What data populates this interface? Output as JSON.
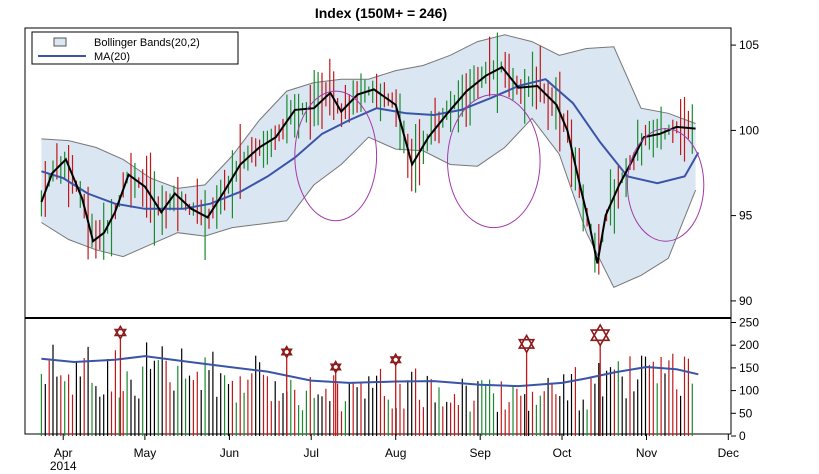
{
  "chart_data": {
    "type": "line",
    "title": "Index (150M+ = 246)",
    "legend": {
      "placement": "top-left",
      "entries": [
        "Bollinger Bands(20,2)",
        "MA(20)"
      ]
    },
    "colors": {
      "band_fill": "#dbe6f3",
      "band_edge": "#777777",
      "ma": "#3a55a8",
      "price": "#000000",
      "bar_up": "#1a8a2e",
      "bar_down": "#c01818",
      "ellipse": "#a23aa8",
      "star": "#8b1a1a",
      "volume_ma": "#3a55a8"
    },
    "x_axis": {
      "labels": [
        "Apr",
        "May",
        "Jun",
        "Jul",
        "Aug",
        "Sep",
        "Oct",
        "Nov",
        "Dec"
      ],
      "sub_label": "2014"
    },
    "price_axis": {
      "range": [
        89,
        106
      ],
      "ticks": [
        "90",
        "95",
        "100",
        "105"
      ]
    },
    "volume_axis": {
      "range": [
        0,
        260
      ],
      "ticks": [
        "0",
        "50",
        "100",
        "150",
        "200",
        "250"
      ]
    },
    "series": [
      {
        "name": "MA(20)",
        "points": [
          [
            "2014-03-24",
            97.6
          ],
          [
            "2014-04-01",
            97.2
          ],
          [
            "2014-04-10",
            96.3
          ],
          [
            "2014-04-20",
            95.7
          ],
          [
            "2014-05-01",
            95.4
          ],
          [
            "2014-05-15",
            95.4
          ],
          [
            "2014-05-25",
            95.7
          ],
          [
            "2014-06-05",
            96.4
          ],
          [
            "2014-06-15",
            97.3
          ],
          [
            "2014-06-25",
            98.4
          ],
          [
            "2014-07-05",
            99.8
          ],
          [
            "2014-07-15",
            100.6
          ],
          [
            "2014-07-25",
            101.3
          ],
          [
            "2014-08-05",
            101.0
          ],
          [
            "2014-08-15",
            100.9
          ],
          [
            "2014-08-25",
            101.2
          ],
          [
            "2014-09-05",
            101.9
          ],
          [
            "2014-09-15",
            102.6
          ],
          [
            "2014-09-25",
            103.0
          ],
          [
            "2014-10-05",
            101.6
          ],
          [
            "2014-10-15",
            99.3
          ],
          [
            "2014-10-25",
            97.3
          ],
          [
            "2014-11-05",
            96.9
          ],
          [
            "2014-11-15",
            97.3
          ],
          [
            "2014-11-20",
            98.7
          ]
        ]
      },
      {
        "name": "Price",
        "points": [
          [
            "2014-03-24",
            95.8
          ],
          [
            "2014-03-28",
            97.5
          ],
          [
            "2014-04-02",
            98.3
          ],
          [
            "2014-04-08",
            96.0
          ],
          [
            "2014-04-12",
            93.5
          ],
          [
            "2014-04-16",
            94.0
          ],
          [
            "2014-04-20",
            95.2
          ],
          [
            "2014-04-25",
            97.4
          ],
          [
            "2014-05-01",
            96.7
          ],
          [
            "2014-05-07",
            95.2
          ],
          [
            "2014-05-12",
            96.3
          ],
          [
            "2014-05-18",
            95.4
          ],
          [
            "2014-05-24",
            94.9
          ],
          [
            "2014-05-30",
            96.4
          ],
          [
            "2014-06-05",
            98.0
          ],
          [
            "2014-06-12",
            99.0
          ],
          [
            "2014-06-18",
            99.6
          ],
          [
            "2014-06-25",
            101.2
          ],
          [
            "2014-07-02",
            101.3
          ],
          [
            "2014-07-08",
            102.2
          ],
          [
            "2014-07-12",
            101.1
          ],
          [
            "2014-07-18",
            102.1
          ],
          [
            "2014-07-24",
            102.4
          ],
          [
            "2014-08-01",
            101.5
          ],
          [
            "2014-08-07",
            98.0
          ],
          [
            "2014-08-13",
            99.6
          ],
          [
            "2014-08-20",
            101.0
          ],
          [
            "2014-08-27",
            102.3
          ],
          [
            "2014-09-03",
            103.2
          ],
          [
            "2014-09-09",
            103.7
          ],
          [
            "2014-09-15",
            102.5
          ],
          [
            "2014-09-22",
            102.6
          ],
          [
            "2014-09-29",
            101.5
          ],
          [
            "2014-10-03",
            100.0
          ],
          [
            "2014-10-08",
            96.5
          ],
          [
            "2014-10-11",
            94.5
          ],
          [
            "2014-10-14",
            92.2
          ],
          [
            "2014-10-17",
            95.0
          ],
          [
            "2014-10-22",
            96.8
          ],
          [
            "2014-10-27",
            98.3
          ],
          [
            "2014-10-31",
            99.6
          ],
          [
            "2014-11-06",
            99.8
          ],
          [
            "2014-11-12",
            100.2
          ],
          [
            "2014-11-19",
            100.1
          ]
        ]
      }
    ],
    "bollinger_bands": {
      "upper": [
        [
          "2014-03-24",
          99.5
        ],
        [
          "2014-04-03",
          99.4
        ],
        [
          "2014-04-13",
          99.0
        ],
        [
          "2014-04-23",
          98.3
        ],
        [
          "2014-05-03",
          97.2
        ],
        [
          "2014-05-13",
          96.6
        ],
        [
          "2014-05-23",
          96.8
        ],
        [
          "2014-06-02",
          98.5
        ],
        [
          "2014-06-12",
          100.6
        ],
        [
          "2014-06-22",
          102.3
        ],
        [
          "2014-07-02",
          102.8
        ],
        [
          "2014-07-12",
          103.0
        ],
        [
          "2014-07-22",
          103.0
        ],
        [
          "2014-08-01",
          103.5
        ],
        [
          "2014-08-11",
          103.8
        ],
        [
          "2014-08-21",
          104.4
        ],
        [
          "2014-08-31",
          105.2
        ],
        [
          "2014-09-10",
          105.6
        ],
        [
          "2014-09-20",
          105.2
        ],
        [
          "2014-09-30",
          104.4
        ],
        [
          "2014-10-10",
          104.8
        ],
        [
          "2014-10-20",
          104.9
        ],
        [
          "2014-10-30",
          101.3
        ],
        [
          "2014-11-09",
          101.0
        ],
        [
          "2014-11-19",
          100.4
        ]
      ],
      "lower": [
        [
          "2014-03-24",
          94.6
        ],
        [
          "2014-04-03",
          93.6
        ],
        [
          "2014-04-13",
          93.0
        ],
        [
          "2014-04-23",
          92.6
        ],
        [
          "2014-05-03",
          93.3
        ],
        [
          "2014-05-13",
          94.0
        ],
        [
          "2014-05-23",
          93.8
        ],
        [
          "2014-06-02",
          94.3
        ],
        [
          "2014-06-12",
          94.5
        ],
        [
          "2014-06-22",
          94.7
        ],
        [
          "2014-07-02",
          96.8
        ],
        [
          "2014-07-12",
          98.0
        ],
        [
          "2014-07-22",
          99.6
        ],
        [
          "2014-08-01",
          98.9
        ],
        [
          "2014-08-11",
          98.8
        ],
        [
          "2014-08-21",
          98.0
        ],
        [
          "2014-08-31",
          97.9
        ],
        [
          "2014-09-10",
          99.0
        ],
        [
          "2014-09-20",
          100.7
        ],
        [
          "2014-09-30",
          98.6
        ],
        [
          "2014-10-10",
          94.0
        ],
        [
          "2014-10-20",
          90.8
        ],
        [
          "2014-10-30",
          91.5
        ],
        [
          "2014-11-09",
          92.5
        ],
        [
          "2014-11-19",
          96.5
        ]
      ]
    },
    "ellipses": [
      {
        "center": [
          "2014-07-10",
          98.5
        ],
        "rx_days": 15,
        "ry_value": 3.8
      },
      {
        "center": [
          "2014-09-06",
          98.2
        ],
        "rx_days": 17,
        "ry_value": 3.9
      },
      {
        "center": [
          "2014-11-08",
          96.8
        ],
        "rx_days": 14,
        "ry_value": 3.3
      }
    ],
    "volume": {
      "ma": [
        [
          "2014-03-24",
          170
        ],
        [
          "2014-04-05",
          163
        ],
        [
          "2014-04-20",
          168
        ],
        [
          "2014-05-01",
          176
        ],
        [
          "2014-05-15",
          165
        ],
        [
          "2014-06-01",
          152
        ],
        [
          "2014-06-15",
          142
        ],
        [
          "2014-07-01",
          122
        ],
        [
          "2014-07-15",
          117
        ],
        [
          "2014-08-01",
          120
        ],
        [
          "2014-08-15",
          121
        ],
        [
          "2014-09-01",
          113
        ],
        [
          "2014-09-15",
          110
        ],
        [
          "2014-10-01",
          117
        ],
        [
          "2014-10-10",
          127
        ],
        [
          "2014-10-20",
          140
        ],
        [
          "2014-11-01",
          152
        ],
        [
          "2014-11-12",
          147
        ],
        [
          "2014-11-20",
          136
        ]
      ],
      "stars": [
        {
          "date": "2014-04-22",
          "value": 228,
          "size": 1.0
        },
        {
          "date": "2014-06-22",
          "value": 185,
          "size": 0.9
        },
        {
          "date": "2014-07-10",
          "value": 152,
          "size": 0.9
        },
        {
          "date": "2014-08-01",
          "value": 168,
          "size": 0.9
        },
        {
          "date": "2014-09-18",
          "value": 203,
          "size": 1.4
        },
        {
          "date": "2014-10-15",
          "value": 222,
          "size": 1.7
        }
      ]
    }
  }
}
